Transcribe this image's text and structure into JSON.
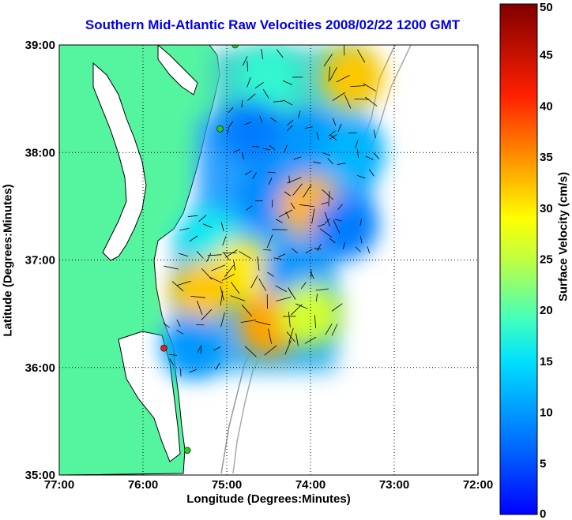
{
  "chart_data": {
    "type": "heatmap",
    "title": "Southern Mid-Atlantic Raw Velocities 2008/02/22 1200 GMT",
    "xlabel": "Longitude (Degrees:Minutes)",
    "ylabel": "Latitude (Degrees:Minutes)",
    "colorbar_label": "Surface Velocity (cm/s)",
    "x_ticks": [
      "77:00",
      "76:00",
      "75:00",
      "74:00",
      "73:00",
      "72:00"
    ],
    "x_tick_values": [
      -77,
      -76,
      -75,
      -74,
      -73,
      -72
    ],
    "y_ticks": [
      "35:00",
      "36:00",
      "37:00",
      "38:00",
      "39:00"
    ],
    "y_tick_values": [
      35,
      36,
      37,
      38,
      39
    ],
    "xlim": [
      -77,
      -72
    ],
    "ylim": [
      35,
      39
    ],
    "colorbar_ticks": [
      0,
      5,
      10,
      15,
      20,
      25,
      30,
      35,
      40,
      45,
      50
    ],
    "clim": [
      0,
      50
    ],
    "grid": true,
    "velocity_regions": [
      {
        "lon": -74.5,
        "lat": 38.7,
        "speed": 18
      },
      {
        "lon": -73.5,
        "lat": 38.7,
        "speed": 32
      },
      {
        "lon": -74.7,
        "lat": 38.2,
        "speed": 8
      },
      {
        "lon": -74.0,
        "lat": 38.1,
        "speed": 10
      },
      {
        "lon": -73.5,
        "lat": 38.0,
        "speed": 12
      },
      {
        "lon": -74.5,
        "lat": 37.6,
        "speed": 9
      },
      {
        "lon": -74.0,
        "lat": 37.5,
        "speed": 33
      },
      {
        "lon": -73.6,
        "lat": 37.3,
        "speed": 8
      },
      {
        "lon": -75.2,
        "lat": 37.2,
        "speed": 16
      },
      {
        "lon": -74.8,
        "lat": 36.9,
        "speed": 30
      },
      {
        "lon": -74.2,
        "lat": 36.9,
        "speed": 10
      },
      {
        "lon": -75.3,
        "lat": 36.7,
        "speed": 32
      },
      {
        "lon": -74.5,
        "lat": 36.4,
        "speed": 34
      },
      {
        "lon": -74.0,
        "lat": 36.5,
        "speed": 26
      },
      {
        "lon": -75.4,
        "lat": 36.2,
        "speed": 10
      }
    ],
    "stations": [
      {
        "lon": -74.9,
        "lat": 39.0,
        "color": "#22cc22"
      },
      {
        "lon": -75.08,
        "lat": 38.22,
        "color": "#22cc22"
      },
      {
        "lon": -75.75,
        "lat": 36.18,
        "color": "#dd2222"
      },
      {
        "lon": -75.47,
        "lat": 35.23,
        "color": "#22cc22"
      }
    ],
    "land_color": "#55f5a0"
  }
}
